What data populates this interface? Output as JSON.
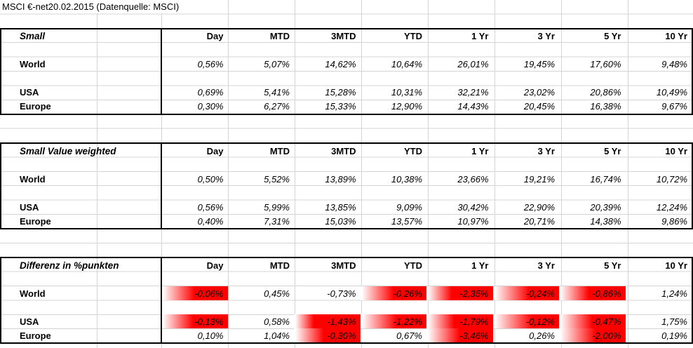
{
  "title": "MSCI €-net20.02.2015 (Datenquelle: MSCI)",
  "columns": [
    "Day",
    "MTD",
    "3MTD",
    "YTD",
    "1 Yr",
    "3 Yr",
    "5 Yr",
    "10 Yr"
  ],
  "colors": {
    "highlight_red": "#ff0000",
    "gridline": "#d4d4d4",
    "table_border": "#000000",
    "background": "#ffffff",
    "text": "#000000"
  },
  "tables": [
    {
      "name": "Small",
      "rows": [
        {
          "label": "World",
          "values": [
            "0,56%",
            "5,07%",
            "14,62%",
            "10,64%",
            "26,01%",
            "19,45%",
            "17,60%",
            "9,48%"
          ]
        },
        {
          "label": "USA",
          "values": [
            "0,69%",
            "5,41%",
            "15,28%",
            "10,31%",
            "32,21%",
            "23,02%",
            "20,86%",
            "10,49%"
          ]
        },
        {
          "label": "Europe",
          "values": [
            "0,30%",
            "6,27%",
            "15,33%",
            "12,90%",
            "14,43%",
            "20,45%",
            "16,38%",
            "9,67%"
          ]
        }
      ]
    },
    {
      "name": "Small Value weighted",
      "rows": [
        {
          "label": "World",
          "values": [
            "0,50%",
            "5,52%",
            "13,89%",
            "10,38%",
            "23,66%",
            "19,21%",
            "16,74%",
            "10,72%"
          ]
        },
        {
          "label": "USA",
          "values": [
            "0,56%",
            "5,99%",
            "13,85%",
            "9,09%",
            "30,42%",
            "22,90%",
            "20,39%",
            "12,24%"
          ]
        },
        {
          "label": "Europe",
          "values": [
            "0,40%",
            "7,31%",
            "15,03%",
            "13,57%",
            "10,97%",
            "20,71%",
            "14,38%",
            "9,86%"
          ]
        }
      ]
    },
    {
      "name": "Differenz in %punkten",
      "rows": [
        {
          "label": "World",
          "values": [
            "-0,06%",
            "0,45%",
            "-0,73%",
            "-0,26%",
            "-2,35%",
            "-0,24%",
            "-0,86%",
            "1,24%"
          ],
          "highlights": [
            0.5,
            null,
            null,
            0.5,
            0.38,
            0.55,
            0.45,
            null
          ]
        },
        {
          "label": "USA",
          "values": [
            "-0,13%",
            "0,58%",
            "-1,43%",
            "-1,22%",
            "-1,79%",
            "-0,12%",
            "-0,47%",
            "1,75%"
          ],
          "highlights": [
            0.48,
            null,
            0.3,
            0.55,
            0.42,
            0.6,
            0.5,
            null
          ]
        },
        {
          "label": "Europe",
          "values": [
            "0,10%",
            "1,04%",
            "-0,30%",
            "0,67%",
            "-3,46%",
            "0,26%",
            "-2,00%",
            "0,19%"
          ],
          "highlights": [
            null,
            null,
            0.45,
            null,
            0.5,
            null,
            0.55,
            null
          ]
        }
      ]
    }
  ]
}
